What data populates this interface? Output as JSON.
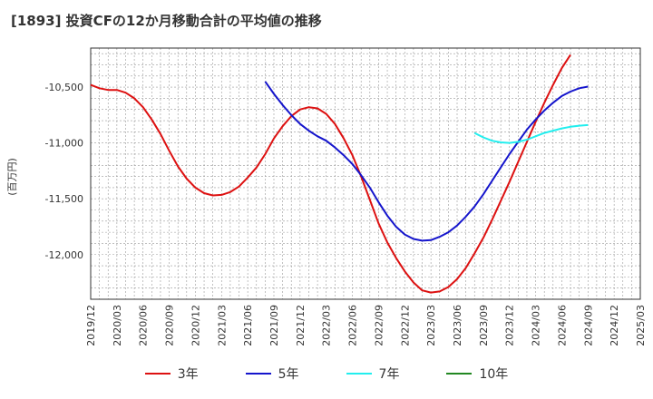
{
  "title": "[1893]  投資CFの12か月移動合計の平均値の推移",
  "chart_data": {
    "type": "line",
    "title": "[1893]  投資CFの12か月移動合計の平均値の推移",
    "ylabel": "(百万円)",
    "xlabel": "",
    "ylim": [
      -12400,
      -10150
    ],
    "yticks": [
      -10500,
      -11000,
      -11500,
      -12000
    ],
    "ytick_labels": [
      "-10,500",
      "-11,000",
      "-11,500",
      "-12,000"
    ],
    "x_ticks": [
      "2019/12",
      "2020/03",
      "2020/06",
      "2020/09",
      "2020/12",
      "2021/03",
      "2021/06",
      "2021/09",
      "2021/12",
      "2022/03",
      "2022/06",
      "2022/09",
      "2022/12",
      "2023/03",
      "2023/06",
      "2023/09",
      "2023/12",
      "2024/03",
      "2024/06",
      "2024/09",
      "2024/12",
      "2025/03"
    ],
    "grid": true,
    "legend_position": "bottom",
    "series": [
      {
        "name": "3年",
        "color": "#dd1111",
        "start": "2019/12",
        "values": [
          -10480,
          -10510,
          -10525,
          -10525,
          -10550,
          -10600,
          -10680,
          -10790,
          -10920,
          -11070,
          -11210,
          -11320,
          -11400,
          -11450,
          -11470,
          -11465,
          -11440,
          -11390,
          -11310,
          -11220,
          -11100,
          -10960,
          -10850,
          -10760,
          -10700,
          -10680,
          -10690,
          -10740,
          -10830,
          -10960,
          -11110,
          -11300,
          -11510,
          -11720,
          -11890,
          -12030,
          -12150,
          -12250,
          -12320,
          -12340,
          -12330,
          -12290,
          -12220,
          -12120,
          -11990,
          -11850,
          -11690,
          -11520,
          -11350,
          -11170,
          -10990,
          -10810,
          -10640,
          -10480,
          -10330,
          -10210
        ]
      },
      {
        "name": "5年",
        "color": "#1515cc",
        "start": "2021/08",
        "values": [
          -10450,
          -10560,
          -10660,
          -10750,
          -10830,
          -10890,
          -10940,
          -10980,
          -11040,
          -11110,
          -11190,
          -11290,
          -11400,
          -11530,
          -11650,
          -11750,
          -11820,
          -11860,
          -11875,
          -11870,
          -11840,
          -11800,
          -11740,
          -11660,
          -11570,
          -11460,
          -11340,
          -11220,
          -11100,
          -10990,
          -10880,
          -10790,
          -10710,
          -10640,
          -10580,
          -10540,
          -10510,
          -10495
        ]
      },
      {
        "name": "7年",
        "color": "#22eeee",
        "start": "2023/08",
        "values": [
          -10910,
          -10950,
          -10980,
          -10995,
          -11000,
          -10990,
          -10970,
          -10940,
          -10910,
          -10890,
          -10870,
          -10855,
          -10845,
          -10840
        ]
      },
      {
        "name": "10年",
        "color": "#228822",
        "start": "2019/12",
        "values": []
      }
    ]
  }
}
